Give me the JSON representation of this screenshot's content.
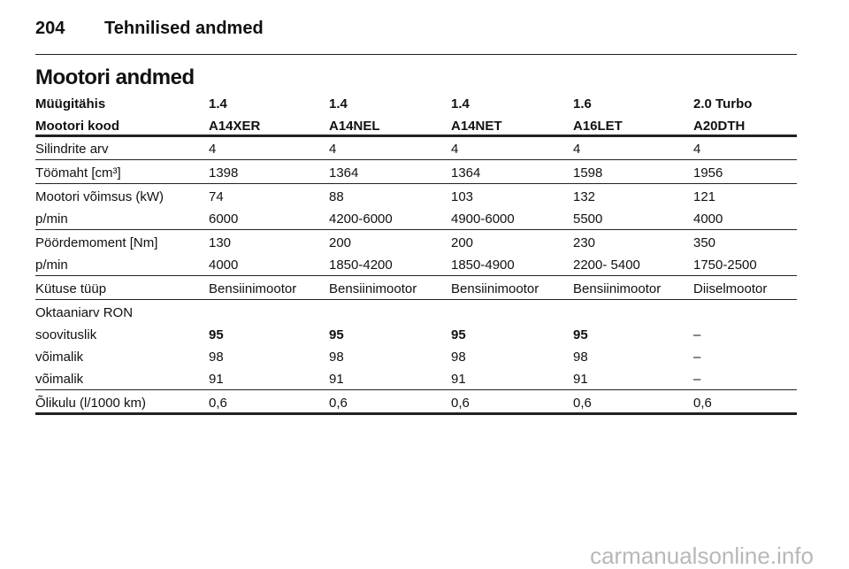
{
  "header": {
    "page_number": "204",
    "title": "Tehnilised andmed"
  },
  "section_title": "Mootori andmed",
  "table": {
    "header": [
      [
        "Müügitähis",
        "1.4",
        "1.4",
        "1.4",
        "1.6",
        "2.0 Turbo"
      ],
      [
        "Mootori kood",
        "A14XER",
        "A14NEL",
        "A14NET",
        "A16LET",
        "A20DTH"
      ]
    ],
    "groups": [
      [
        [
          "Silindrite arv",
          "4",
          "4",
          "4",
          "4",
          "4"
        ]
      ],
      [
        [
          "Töömaht [cm³]",
          "1398",
          "1364",
          "1364",
          "1598",
          "1956"
        ]
      ],
      [
        [
          "Mootori võimsus (kW)",
          "74",
          "88",
          "103",
          "132",
          "121"
        ],
        [
          "p/min",
          "6000",
          "4200-6000",
          "4900-6000",
          "5500",
          "4000"
        ]
      ],
      [
        [
          "Pöördemoment [Nm]",
          "130",
          "200",
          "200",
          "230",
          "350"
        ],
        [
          "p/min",
          "4000",
          "1850-4200",
          "1850-4900",
          "2200- 5400",
          "1750-2500"
        ]
      ],
      [
        [
          "Kütuse tüüp",
          "Bensiinimootor",
          "Bensiinimootor",
          "Bensiinimootor",
          "Bensiinimootor",
          "Diiselmootor"
        ]
      ],
      [
        [
          "Oktaaniarv RON"
        ],
        [
          "soovituslik",
          "95",
          "95",
          "95",
          "95",
          "–"
        ],
        [
          "võimalik",
          "98",
          "98",
          "98",
          "98",
          "–"
        ],
        [
          "võimalik",
          "91",
          "91",
          "91",
          "91",
          "–"
        ]
      ],
      [
        [
          "Õlikulu (l/1000 km)",
          "0,6",
          "0,6",
          "0,6",
          "0,6",
          "0,6"
        ]
      ]
    ]
  },
  "watermark": "carmanualsonline.info"
}
